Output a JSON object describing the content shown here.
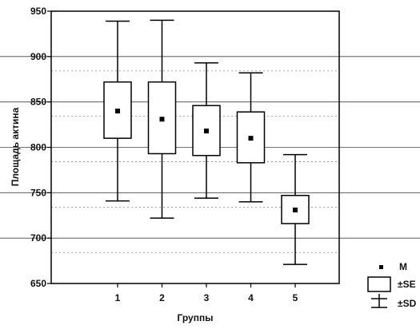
{
  "chart_data": {
    "type": "box",
    "xlabel": "Группы",
    "ylabel": "Площадь актина",
    "ylim": [
      650,
      950
    ],
    "yticks": [
      650,
      700,
      750,
      800,
      850,
      900,
      950
    ],
    "categories": [
      "1",
      "2",
      "3",
      "4",
      "5"
    ],
    "boxes": [
      {
        "category": "1",
        "mean": 840,
        "se_low": 810,
        "se_high": 872,
        "sd_low": 741,
        "sd_high": 939
      },
      {
        "category": "2",
        "mean": 831,
        "se_low": 793,
        "se_high": 872,
        "sd_low": 722,
        "sd_high": 940
      },
      {
        "category": "3",
        "mean": 818,
        "se_low": 791,
        "se_high": 846,
        "sd_low": 744,
        "sd_high": 893
      },
      {
        "category": "4",
        "mean": 810,
        "se_low": 783,
        "se_high": 839,
        "sd_low": 740,
        "sd_high": 882
      },
      {
        "category": "5",
        "mean": 731,
        "se_low": 716,
        "se_high": 747,
        "sd_low": 671,
        "sd_high": 792
      }
    ],
    "legend": {
      "mean": "M",
      "box": "±SE",
      "whisker": "±SD"
    },
    "grid": true
  }
}
